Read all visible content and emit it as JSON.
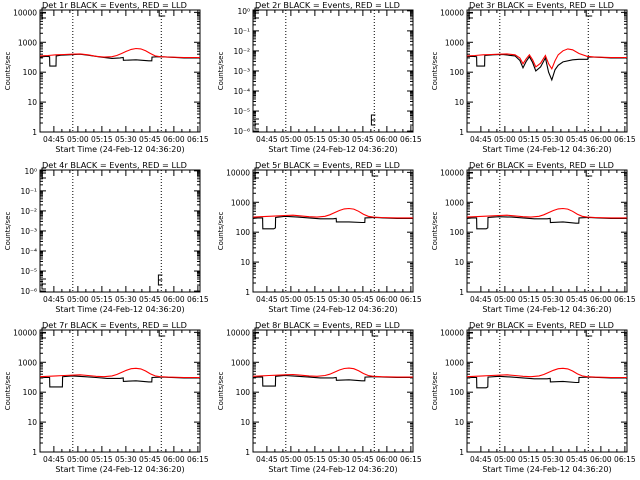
{
  "figure": {
    "xlabel": "Start Time (24-Feb-12 04:36:20)",
    "ylabel": "Counts/sec",
    "x_ticks": [
      "04:45",
      "05:00",
      "05:15",
      "05:30",
      "05:45",
      "06:00",
      "06:15"
    ],
    "x_range_minutes_after_start": [
      0,
      100
    ],
    "x_tick_minutes": [
      8.67,
      23.67,
      38.67,
      53.67,
      68.67,
      83.67,
      98.67
    ],
    "dotted_lines_minutes": [
      20.5,
      75.8
    ],
    "colors": {
      "events": "#000000",
      "lld": "#ff0000",
      "axes": "#000000"
    },
    "legend_note": "BLACK = Events, RED = LLD"
  },
  "chart_data": [
    {
      "title": "Det 1r BLACK = Events, RED = LLD",
      "type": "line",
      "y_scale": "log",
      "ylim": [
        1,
        12000
      ],
      "y_ticks": [
        "1",
        "10",
        "100",
        "1000",
        "10000"
      ],
      "marker_mid": true,
      "series": [
        {
          "color": "#000000",
          "x": [
            0,
            2,
            4,
            6,
            6.1,
            9,
            10,
            10.1,
            13,
            18,
            25,
            30,
            38,
            45,
            50,
            52,
            52.1,
            60,
            68,
            69.9,
            70,
            74,
            80,
            90,
            100
          ],
          "y": [
            320,
            330,
            340,
            330,
            160,
            160,
            160,
            350,
            370,
            380,
            400,
            370,
            320,
            290,
            300,
            310,
            250,
            260,
            240,
            240,
            320,
            330,
            320,
            300,
            300
          ]
        },
        {
          "color": "#ff0000",
          "x": [
            0,
            5,
            10,
            15,
            20,
            25,
            30,
            35,
            40,
            45,
            48,
            51,
            54,
            57,
            60,
            63,
            66,
            69,
            72,
            75,
            80,
            90,
            100
          ],
          "y": [
            350,
            360,
            380,
            390,
            400,
            410,
            380,
            340,
            320,
            330,
            360,
            420,
            500,
            580,
            620,
            600,
            520,
            420,
            350,
            330,
            320,
            310,
            310
          ]
        }
      ]
    },
    {
      "title": "Det 2r BLACK = Events, RED = LLD",
      "type": "line",
      "y_scale": "log",
      "ylim": [
        9e-07,
        1.1
      ],
      "y_ticks": [
        "10⁻⁶",
        "10⁻⁵",
        "10⁻⁴",
        "10⁻³",
        "10⁻²",
        "10⁻¹",
        "10⁰"
      ],
      "marker_mid": false,
      "series": []
    },
    {
      "title": "Det 3r BLACK = Events, RED = LLD",
      "type": "line",
      "y_scale": "log",
      "ylim": [
        1,
        12000
      ],
      "y_ticks": [
        "1",
        "10",
        "100",
        "1000",
        "10000"
      ],
      "marker_mid": true,
      "series": [
        {
          "color": "#000000",
          "x": [
            0,
            3,
            6,
            6.1,
            10,
            11,
            11.1,
            16,
            22,
            30,
            33,
            35,
            37,
            39,
            41,
            43,
            46,
            49,
            51,
            53,
            55,
            57,
            60,
            66,
            70,
            75.5,
            75.6,
            80,
            90,
            100
          ],
          "y": [
            330,
            340,
            330,
            160,
            160,
            160,
            360,
            380,
            390,
            350,
            250,
            140,
            230,
            330,
            210,
            110,
            150,
            300,
            100,
            55,
            120,
            170,
            220,
            260,
            270,
            270,
            320,
            320,
            300,
            300
          ]
        },
        {
          "color": "#ff0000",
          "x": [
            0,
            5,
            10,
            15,
            20,
            25,
            30,
            33,
            35,
            37,
            39,
            41,
            43,
            46,
            49,
            51,
            53,
            55,
            57,
            60,
            63,
            66,
            70,
            75,
            80,
            90,
            100
          ],
          "y": [
            350,
            360,
            380,
            390,
            400,
            410,
            380,
            300,
            190,
            280,
            380,
            260,
            150,
            200,
            360,
            190,
            130,
            240,
            380,
            520,
            600,
            560,
            420,
            340,
            320,
            310,
            310
          ]
        }
      ]
    },
    {
      "title": "Det 4r BLACK = Events, RED = LLD",
      "type": "line",
      "y_scale": "log",
      "ylim": [
        9e-07,
        1.1
      ],
      "y_ticks": [
        "10⁻⁶",
        "10⁻⁵",
        "10⁻⁴",
        "10⁻³",
        "10⁻²",
        "10⁻¹",
        "10⁰"
      ],
      "marker_mid": false,
      "series": []
    },
    {
      "title": "Det 5r BLACK = Events, RED = LLD",
      "type": "line",
      "y_scale": "log",
      "ylim": [
        1,
        12000
      ],
      "y_ticks": [
        "1",
        "10",
        "100",
        "1000",
        "10000"
      ],
      "marker_mid": true,
      "series": [
        {
          "color": "#000000",
          "x": [
            0,
            3,
            6,
            6.1,
            13,
            14,
            14.1,
            20,
            28,
            35,
            42,
            50,
            52,
            52.1,
            60,
            68,
            69.9,
            70,
            76,
            82,
            90,
            100
          ],
          "y": [
            290,
            300,
            300,
            130,
            130,
            140,
            310,
            340,
            320,
            300,
            280,
            280,
            290,
            220,
            220,
            210,
            210,
            300,
            310,
            300,
            290,
            290
          ]
        },
        {
          "color": "#ff0000",
          "x": [
            0,
            5,
            10,
            15,
            20,
            25,
            30,
            35,
            40,
            45,
            48,
            51,
            54,
            57,
            60,
            63,
            66,
            69,
            72,
            75,
            80,
            90,
            100
          ],
          "y": [
            320,
            330,
            340,
            350,
            360,
            370,
            350,
            330,
            320,
            340,
            380,
            450,
            530,
            600,
            620,
            590,
            500,
            400,
            340,
            320,
            310,
            300,
            300
          ]
        }
      ]
    },
    {
      "title": "Det 6r BLACK = Events, RED = LLD",
      "type": "line",
      "y_scale": "log",
      "ylim": [
        1,
        12000
      ],
      "y_ticks": [
        "1",
        "10",
        "100",
        "1000",
        "10000"
      ],
      "marker_mid": true,
      "series": [
        {
          "color": "#000000",
          "x": [
            0,
            3,
            6,
            6.1,
            12,
            13,
            13.1,
            20,
            28,
            35,
            42,
            50,
            52,
            52.1,
            60,
            68,
            69.9,
            70,
            76,
            82,
            90,
            100
          ],
          "y": [
            290,
            300,
            300,
            130,
            130,
            140,
            310,
            330,
            320,
            300,
            280,
            280,
            290,
            210,
            220,
            200,
            200,
            300,
            310,
            300,
            290,
            290
          ]
        },
        {
          "color": "#ff0000",
          "x": [
            0,
            5,
            10,
            15,
            20,
            25,
            30,
            35,
            40,
            45,
            48,
            51,
            54,
            57,
            60,
            63,
            66,
            69,
            72,
            75,
            80,
            90,
            100
          ],
          "y": [
            320,
            330,
            340,
            350,
            360,
            370,
            350,
            330,
            320,
            340,
            380,
            450,
            530,
            600,
            620,
            590,
            500,
            400,
            340,
            320,
            310,
            300,
            300
          ]
        }
      ]
    },
    {
      "title": "Det 7r BLACK = Events, RED = LLD",
      "type": "line",
      "y_scale": "log",
      "ylim": [
        1,
        12000
      ],
      "y_ticks": [
        "1",
        "10",
        "100",
        "1000",
        "10000"
      ],
      "marker_mid": true,
      "series": [
        {
          "color": "#000000",
          "x": [
            0,
            3,
            6,
            6.1,
            13,
            14,
            14.1,
            20,
            28,
            35,
            42,
            50,
            52,
            52.1,
            60,
            68,
            69.9,
            70,
            76,
            82,
            90,
            100
          ],
          "y": [
            300,
            310,
            310,
            150,
            150,
            150,
            330,
            350,
            330,
            310,
            290,
            290,
            300,
            230,
            240,
            220,
            220,
            310,
            320,
            310,
            300,
            300
          ]
        },
        {
          "color": "#ff0000",
          "x": [
            0,
            5,
            10,
            15,
            20,
            25,
            30,
            35,
            40,
            45,
            48,
            51,
            54,
            57,
            60,
            63,
            66,
            69,
            72,
            75,
            80,
            90,
            100
          ],
          "y": [
            330,
            340,
            350,
            360,
            370,
            380,
            360,
            340,
            330,
            350,
            390,
            460,
            540,
            610,
            630,
            600,
            510,
            410,
            350,
            330,
            320,
            310,
            310
          ]
        }
      ]
    },
    {
      "title": "Det 8r BLACK = Events, RED = LLD",
      "type": "line",
      "y_scale": "log",
      "ylim": [
        1,
        12000
      ],
      "y_ticks": [
        "1",
        "10",
        "100",
        "1000",
        "10000"
      ],
      "marker_mid": true,
      "series": [
        {
          "color": "#000000",
          "x": [
            0,
            3,
            6,
            6.1,
            13,
            14,
            14.1,
            20,
            28,
            35,
            42,
            50,
            52,
            52.1,
            60,
            68,
            69.9,
            70,
            76,
            82,
            90,
            100
          ],
          "y": [
            310,
            320,
            320,
            160,
            160,
            160,
            340,
            360,
            340,
            320,
            300,
            300,
            310,
            250,
            260,
            240,
            240,
            320,
            330,
            320,
            310,
            310
          ]
        },
        {
          "color": "#ff0000",
          "x": [
            0,
            5,
            10,
            15,
            20,
            25,
            30,
            35,
            40,
            45,
            48,
            51,
            54,
            57,
            60,
            63,
            66,
            69,
            72,
            75,
            80,
            90,
            100
          ],
          "y": [
            340,
            350,
            360,
            370,
            380,
            390,
            370,
            350,
            340,
            360,
            400,
            470,
            550,
            620,
            640,
            610,
            520,
            420,
            360,
            340,
            330,
            320,
            320
          ]
        }
      ]
    },
    {
      "title": "Det 9r BLACK = Events, RED = LLD",
      "type": "line",
      "y_scale": "log",
      "ylim": [
        1,
        12000
      ],
      "y_ticks": [
        "1",
        "10",
        "100",
        "1000",
        "10000"
      ],
      "marker_mid": true,
      "series": [
        {
          "color": "#000000",
          "x": [
            0,
            3,
            6,
            6.1,
            12,
            13,
            13.1,
            20,
            28,
            35,
            42,
            50,
            52,
            52.1,
            60,
            68,
            69.9,
            70,
            76,
            82,
            90,
            100
          ],
          "y": [
            300,
            310,
            310,
            140,
            140,
            150,
            320,
            340,
            320,
            300,
            280,
            280,
            290,
            220,
            230,
            210,
            210,
            310,
            320,
            310,
            300,
            300
          ]
        },
        {
          "color": "#ff0000",
          "x": [
            0,
            5,
            10,
            15,
            20,
            25,
            30,
            35,
            40,
            45,
            48,
            51,
            54,
            57,
            60,
            63,
            66,
            69,
            72,
            75,
            80,
            90,
            100
          ],
          "y": [
            330,
            340,
            350,
            360,
            370,
            380,
            360,
            340,
            330,
            350,
            390,
            460,
            540,
            610,
            630,
            600,
            510,
            410,
            350,
            330,
            320,
            310,
            310
          ]
        }
      ]
    }
  ]
}
